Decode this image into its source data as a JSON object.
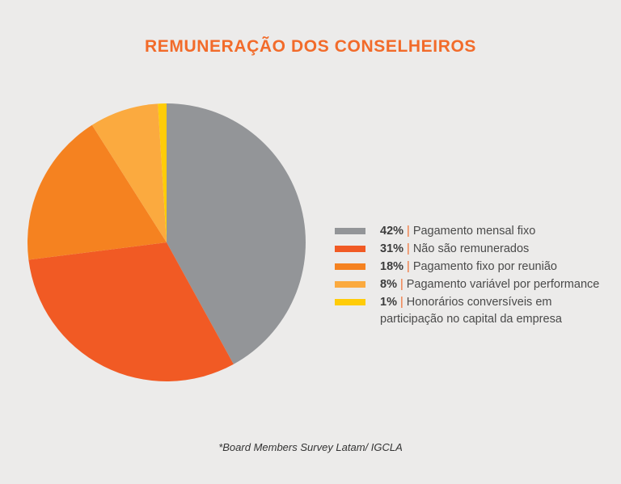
{
  "title": "REMUNERAÇÃO DOS CONSELHEIROS",
  "footnote": "*Board Members Survey Latam/ IGCLA",
  "chart_data": {
    "type": "pie",
    "title": "REMUNERAÇÃO DOS CONSELHEIROS",
    "legend_position": "right",
    "slices": [
      {
        "label": "Pagamento mensal fixo",
        "value": 42,
        "display": "42%",
        "color": "#939598"
      },
      {
        "label": "Não são remunerados",
        "value": 31,
        "display": "31%",
        "color": "#f15a24"
      },
      {
        "label": "Pagamento fixo por reunião",
        "value": 18,
        "display": "18%",
        "color": "#f58220"
      },
      {
        "label": "Pagamento variável por performance",
        "value": 8,
        "display": "8%",
        "color": "#fbaa3f"
      },
      {
        "label": "Honorários conversíveis em participação no capital da empresa",
        "value": 1,
        "display": "1%",
        "color": "#ffcc08"
      }
    ]
  }
}
